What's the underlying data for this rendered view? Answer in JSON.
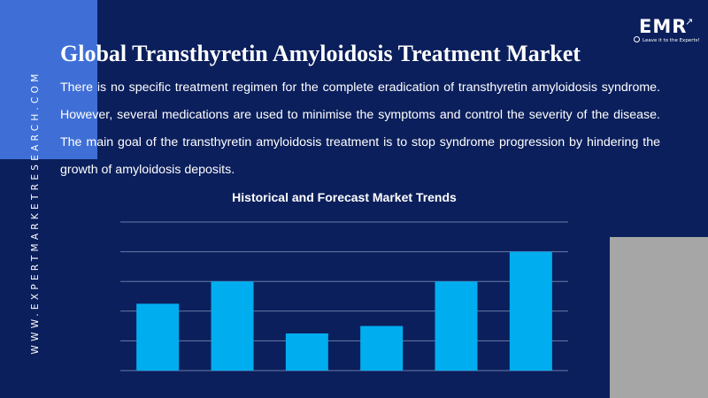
{
  "brand": {
    "logo_text": "EMR",
    "tagline": "Leave it to the Experts!",
    "website_vertical": "WWW.EXPERTMARKETRESEARCH.COM"
  },
  "title": "Global Transthyretin Amyloidosis Treatment Market",
  "description": "There is no specific treatment regimen for the complete eradication of transthyretin amyloidosis syndrome. However, several medications are used to minimise the symptoms and control the severity of the disease. The main goal of the transthyretin amyloidosis treatment is to stop syndrome progression by hindering the growth of amyloidosis deposits.",
  "colors": {
    "background": "#0b1f5c",
    "accent_blue": "#3f6fd6",
    "accent_gray": "#a6a6a6",
    "bar": "#00aeef",
    "gridline": "#6b7aa8"
  },
  "chart_data": {
    "type": "bar",
    "title": "Historical and Forecast Market Trends",
    "xlabel": "",
    "ylabel": "",
    "categories": [
      "",
      "",
      "",
      "",
      "",
      ""
    ],
    "values": [
      2.25,
      3.0,
      1.25,
      1.5,
      3.0,
      4.0
    ],
    "ylim": [
      0,
      5
    ],
    "grid": true,
    "legend": "none"
  }
}
